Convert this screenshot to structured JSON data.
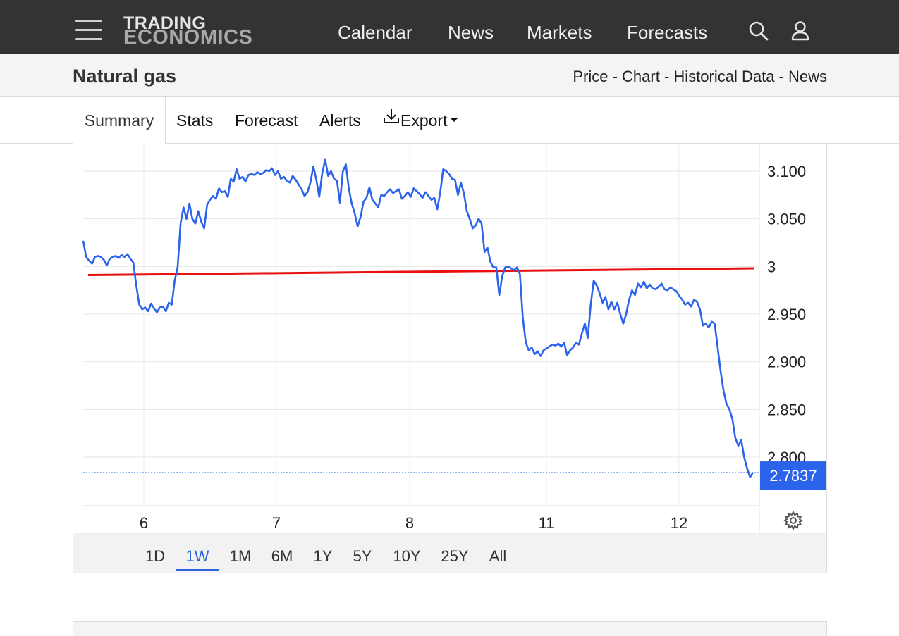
{
  "header": {
    "logo_line1": "TRADING",
    "logo_line2": "ECONOMICS",
    "nav": [
      "Calendar",
      "News",
      "Markets",
      "Forecasts"
    ]
  },
  "subheader": {
    "title": "Natural gas",
    "links": "Price - Chart - Historical Data - News"
  },
  "tabs": {
    "summary": "Summary",
    "stats": "Stats",
    "forecast": "Forecast",
    "alerts": "Alerts",
    "export": "Export"
  },
  "ranges": [
    "1D",
    "1W",
    "1M",
    "6M",
    "1Y",
    "5Y",
    "10Y",
    "25Y",
    "All"
  ],
  "active_range": "1W",
  "colors": {
    "line": "#2b63eb",
    "trend": "#e81010",
    "price_tag": "#2b63eb"
  },
  "chart_data": {
    "type": "line",
    "title": "",
    "xlabel": "",
    "ylabel": "",
    "x_ticks": [
      "6",
      "7",
      "8",
      "11",
      "12"
    ],
    "y_ticks": [
      "3.100",
      "3.050",
      "3",
      "2.950",
      "2.900",
      "2.850",
      "2.800"
    ],
    "ylim": [
      2.755,
      3.125
    ],
    "grid": true,
    "last_value": "2.7837",
    "trend_line": {
      "start": 2.991,
      "end": 2.998
    },
    "series": [
      {
        "values": [
          3.027,
          3.01,
          3.006,
          3.003,
          3.01,
          3.011,
          3.01,
          3.007,
          3.001,
          3.008,
          3.01,
          3.011,
          3.009,
          3.012,
          3.01,
          3.013,
          3.008,
          3.004,
          2.98,
          2.96,
          2.955,
          2.957,
          2.953,
          2.961,
          2.956,
          2.952,
          2.957,
          2.958,
          2.953,
          2.962,
          2.96,
          2.985,
          2.999,
          3.045,
          3.062,
          3.05,
          3.066,
          3.05,
          3.045,
          3.058,
          3.047,
          3.04,
          3.065,
          3.07,
          3.074,
          3.071,
          3.082,
          3.078,
          3.079,
          3.073,
          3.092,
          3.089,
          3.102,
          3.092,
          3.094,
          3.089,
          3.096,
          3.097,
          3.096,
          3.099,
          3.097,
          3.098,
          3.101,
          3.1,
          3.103,
          3.096,
          3.1,
          3.092,
          3.094,
          3.09,
          3.088,
          3.095,
          3.091,
          3.086,
          3.081,
          3.074,
          3.078,
          3.088,
          3.105,
          3.091,
          3.073,
          3.098,
          3.112,
          3.095,
          3.1,
          3.092,
          3.09,
          3.067,
          3.1,
          3.107,
          3.082,
          3.066,
          3.056,
          3.042,
          3.052,
          3.068,
          3.072,
          3.083,
          3.07,
          3.066,
          3.062,
          3.075,
          3.074,
          3.078,
          3.081,
          3.077,
          3.079,
          3.081,
          3.071,
          3.074,
          3.078,
          3.073,
          3.082,
          3.079,
          3.076,
          3.072,
          3.078,
          3.074,
          3.07,
          3.072,
          3.06,
          3.078,
          3.102,
          3.1,
          3.097,
          3.092,
          3.091,
          3.075,
          3.088,
          3.077,
          3.058,
          3.05,
          3.04,
          3.043,
          3.05,
          3.045,
          3.015,
          3.02,
          3.005,
          2.999,
          2.999,
          2.97,
          2.99,
          2.999,
          3.0,
          2.998,
          2.996,
          2.999,
          2.992,
          2.945,
          2.92,
          2.912,
          2.915,
          2.908,
          2.911,
          2.906,
          2.912,
          2.914,
          2.916,
          2.918,
          2.917,
          2.919,
          2.916,
          2.92,
          2.907,
          2.912,
          2.915,
          2.92,
          2.918,
          2.93,
          2.94,
          2.925,
          2.96,
          2.985,
          2.98,
          2.972,
          2.962,
          2.968,
          2.955,
          2.963,
          2.955,
          2.962,
          2.95,
          2.94,
          2.95,
          2.965,
          2.975,
          2.97,
          2.982,
          2.978,
          2.984,
          2.977,
          2.981,
          2.977,
          2.976,
          2.979,
          2.982,
          2.976,
          2.975,
          2.978,
          2.976,
          2.974,
          2.969,
          2.965,
          2.96,
          2.962,
          2.958,
          2.965,
          2.963,
          2.955,
          2.938,
          2.94,
          2.936,
          2.942,
          2.94,
          2.915,
          2.89,
          2.87,
          2.856,
          2.85,
          2.84,
          2.82,
          2.812,
          2.818,
          2.8,
          2.788,
          2.779,
          2.784
        ]
      }
    ]
  }
}
